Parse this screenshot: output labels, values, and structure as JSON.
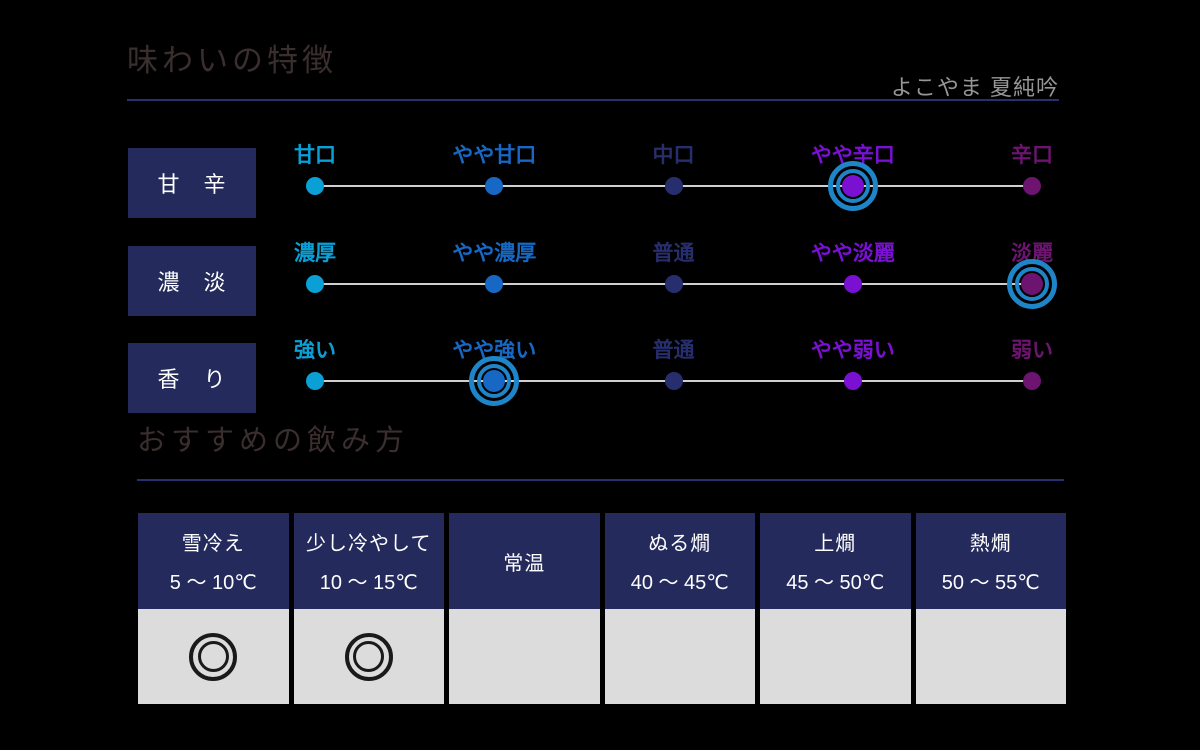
{
  "header": {
    "title": "味わいの特徴",
    "subtitle": "よこやま 夏純吟"
  },
  "section2": {
    "title": "おすすめの飲み方"
  },
  "colors": {
    "background": "#000000",
    "title_text": "#3a2e2e",
    "subtitle_text": "#969696",
    "rule_navy": "#283070",
    "box_navy": "#242b5c",
    "scale_line": "#cfcfcf",
    "highlight_ring_blue": "#1e85c8",
    "level_colors": [
      "#0aa0d6",
      "#1668c4",
      "#272e6d",
      "#7a10d2",
      "#6d1470"
    ],
    "table_body_bg": "#dcdcdc",
    "mark_color": "#1a1a1a"
  },
  "chart_data": [
    {
      "type": "scatter",
      "title": "味わいの特徴",
      "subtitle": "よこやま 夏純吟",
      "description": "three 5-level taste scales, selected level highlighted with double blue ring",
      "grid": false,
      "legend_position": "none",
      "rows": [
        {
          "category": "甘　辛",
          "levels": [
            "甘口",
            "やや甘口",
            "中口",
            "やや辛口",
            "辛口"
          ],
          "selected_index": 3,
          "selected_label": "やや辛口"
        },
        {
          "category": "濃　淡",
          "levels": [
            "濃厚",
            "やや濃厚",
            "普通",
            "やや淡麗",
            "淡麗"
          ],
          "selected_index": 4,
          "selected_label": "淡麗"
        },
        {
          "category": "香　り",
          "levels": [
            "強い",
            "やや強い",
            "普通",
            "やや弱い",
            "弱い"
          ],
          "selected_index": 1,
          "selected_label": "やや強い"
        }
      ]
    },
    {
      "type": "table",
      "title": "おすすめの飲み方",
      "mark_glyph": "◎",
      "columns": [
        {
          "name": "雪冷え",
          "temp": "5 ～ 10℃",
          "marked": true
        },
        {
          "name": "少し冷やして",
          "temp": "10 ～ 15℃",
          "marked": true
        },
        {
          "name": "常温",
          "temp": "",
          "marked": false
        },
        {
          "name": "ぬる燗",
          "temp": "40 ～ 45℃",
          "marked": false
        },
        {
          "name": "上燗",
          "temp": "45 ～ 50℃",
          "marked": false
        },
        {
          "name": "熱燗",
          "temp": "50 ～ 55℃",
          "marked": false
        }
      ]
    }
  ]
}
